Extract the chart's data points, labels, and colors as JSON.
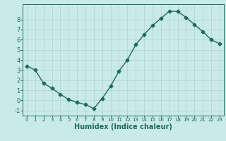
{
  "x": [
    0,
    1,
    2,
    3,
    4,
    5,
    6,
    7,
    8,
    9,
    10,
    11,
    12,
    13,
    14,
    15,
    16,
    17,
    18,
    19,
    20,
    21,
    22,
    23
  ],
  "y": [
    3.4,
    3.0,
    1.7,
    1.2,
    0.6,
    0.1,
    -0.2,
    -0.4,
    -0.8,
    0.2,
    1.4,
    2.9,
    4.0,
    5.5,
    6.5,
    7.4,
    8.1,
    8.8,
    8.8,
    8.2,
    7.5,
    6.8,
    6.0,
    5.6
  ],
  "xlabel": "Humidex (Indice chaleur)",
  "xlim": [
    -0.5,
    23.5
  ],
  "ylim": [
    -1.5,
    9.5
  ],
  "yticks": [
    -1,
    0,
    1,
    2,
    3,
    4,
    5,
    6,
    7,
    8
  ],
  "xticks": [
    0,
    1,
    2,
    3,
    4,
    5,
    6,
    7,
    8,
    9,
    10,
    11,
    12,
    13,
    14,
    15,
    16,
    17,
    18,
    19,
    20,
    21,
    22,
    23
  ],
  "line_color": "#1a6b5a",
  "bg_color": "#c8eae8",
  "grid_color": "#b5d8d4",
  "label_color": "#1a6b5a",
  "tick_color": "#1a6b5a",
  "marker": "D",
  "markersize": 2.5,
  "linewidth": 1.0,
  "label_fontsize": 7,
  "tick_fontsize_x": 5.0,
  "tick_fontsize_y": 6.0
}
